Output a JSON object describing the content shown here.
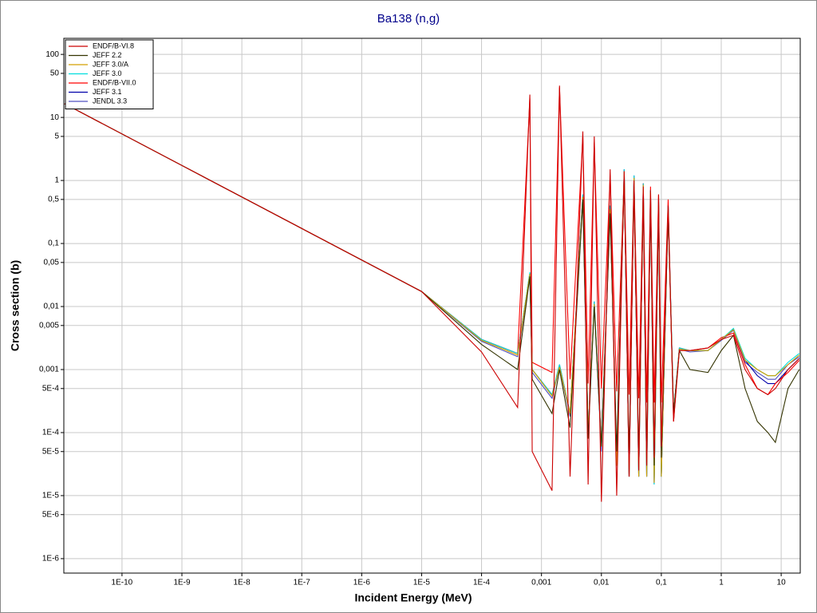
{
  "chart_data": {
    "type": "line",
    "title": "Ba138 (n,g)",
    "x_label": "Incident Energy (MeV)",
    "y_label": "Cross section (b)",
    "xscale": "log",
    "yscale": "log",
    "grid": true,
    "legend": "upper left",
    "xlim": [
      1.07e-11,
      20.8
    ],
    "ylim": [
      5.9e-07,
      180
    ],
    "xticks": [
      {
        "value": 1e-10,
        "label": "1E-10"
      },
      {
        "value": 1e-09,
        "label": "1E-9"
      },
      {
        "value": 1e-08,
        "label": "1E-8"
      },
      {
        "value": 1e-07,
        "label": "1E-7"
      },
      {
        "value": 1e-06,
        "label": "1E-6"
      },
      {
        "value": 1e-05,
        "label": "1E-5"
      },
      {
        "value": 0.0001,
        "label": "1E-4"
      },
      {
        "value": 0.001,
        "label": "0,001"
      },
      {
        "value": 0.01,
        "label": "0,01"
      },
      {
        "value": 0.1,
        "label": "0,1"
      },
      1,
      10
    ],
    "yticks": [
      {
        "value": 1e-06,
        "label": "1E-6"
      },
      {
        "value": 5e-06,
        "label": "5E-6"
      },
      {
        "value": 1e-05,
        "label": "1E-5"
      },
      {
        "value": 5e-05,
        "label": "5E-5"
      },
      {
        "value": 0.0001,
        "label": "1E-4"
      },
      {
        "value": 0.0005,
        "label": "5E-4"
      },
      {
        "value": 0.001,
        "label": "0,001"
      },
      {
        "value": 0.005,
        "label": "0,005"
      },
      {
        "value": 0.01,
        "label": "0,01"
      },
      {
        "value": 0.05,
        "label": "0,05"
      },
      {
        "value": 0.1,
        "label": "0,1"
      },
      {
        "value": 0.5,
        "label": "0,5"
      },
      1,
      5,
      10,
      50,
      100
    ],
    "x": [
      1.1e-11,
      1e-09,
      1e-07,
      1e-05,
      0.0001,
      0.0004,
      0.00064,
      0.0007,
      0.0015,
      0.002,
      0.003,
      0.0049,
      0.006,
      0.0076,
      0.01,
      0.014,
      0.018,
      0.024,
      0.029,
      0.035,
      0.042,
      0.05,
      0.057,
      0.066,
      0.076,
      0.09,
      0.1,
      0.13,
      0.16,
      0.2,
      0.3,
      0.6,
      1,
      1.6,
      2.5,
      4,
      6,
      8,
      13,
      20
    ],
    "series": [
      {
        "name": "ENDF/B-VI.8",
        "color": "#cc0000",
        "values": [
          16.5,
          1.73,
          0.173,
          0.0173,
          0.0019,
          0.00025,
          23,
          5e-05,
          1.2e-05,
          32,
          2e-05,
          6,
          1.5e-05,
          5,
          8e-06,
          1.5,
          1e-05,
          1.4,
          2e-05,
          1,
          2.5e-05,
          0.8,
          3e-05,
          0.7,
          4e-05,
          0.6,
          6e-05,
          0.4,
          0.00015,
          0.002,
          0.002,
          0.0022,
          0.003,
          0.0035,
          0.001,
          0.0005,
          0.0004,
          0.0005,
          0.001,
          0.0015
        ]
      },
      {
        "name": "JEFF 2.2",
        "color": "#333300",
        "values": [
          16.5,
          1.73,
          0.173,
          0.0173,
          0.0025,
          0.001,
          0.03,
          0.0007,
          0.0002,
          0.001,
          0.00012,
          0.5,
          8e-05,
          0.01,
          6e-05,
          0.3,
          5e-05,
          1,
          4e-05,
          0.8,
          4e-05,
          0.6,
          3e-05,
          0.5,
          3e-05,
          0.4,
          4e-05,
          0.3,
          0.0002,
          0.002,
          0.001,
          0.0009,
          0.002,
          0.0035,
          0.0005,
          0.00015,
          0.0001,
          7e-05,
          0.0005,
          0.001
        ]
      },
      {
        "name": "JEFF 3.0/A",
        "color": "#d4a000",
        "values": [
          16.5,
          1.73,
          0.173,
          0.0173,
          0.0029,
          0.0017,
          0.033,
          0.001,
          0.00038,
          0.0011,
          0.0002,
          0.55,
          0.0001,
          0.011,
          6e-05,
          0.35,
          3e-05,
          1.4,
          2e-05,
          1.1,
          2e-05,
          0.85,
          2e-05,
          0.65,
          1.6e-05,
          0.45,
          2e-05,
          0.35,
          0.0002,
          0.0021,
          0.002,
          0.002,
          0.003,
          0.0043,
          0.0014,
          0.001,
          0.0008,
          0.0008,
          0.0012,
          0.0017
        ]
      },
      {
        "name": "JEFF 3.0",
        "color": "#00dddd",
        "values": [
          16.5,
          1.73,
          0.173,
          0.0173,
          0.003,
          0.0018,
          0.035,
          0.001,
          0.0004,
          0.0012,
          0.0002,
          0.6,
          0.0001,
          0.012,
          6e-05,
          0.4,
          3e-05,
          1.5,
          2e-05,
          1.2,
          2e-05,
          0.9,
          2e-05,
          0.7,
          1.5e-05,
          0.5,
          2e-05,
          0.4,
          0.0002,
          0.0022,
          0.002,
          0.002,
          0.003,
          0.0045,
          0.0015,
          0.001,
          0.0008,
          0.0008,
          0.0013,
          0.0018
        ]
      },
      {
        "name": "ENDF/B-VII.0",
        "color": "#ff0000",
        "values": [
          16.5,
          1.73,
          0.173,
          0.0173,
          0.003,
          0.0018,
          20,
          0.0013,
          0.0009,
          30,
          0.0007,
          5,
          0.0006,
          4,
          0.0005,
          1.2,
          0.00045,
          1.3,
          0.0004,
          1.1,
          0.00035,
          0.9,
          0.0003,
          0.8,
          0.0003,
          0.6,
          0.0003,
          0.5,
          0.00015,
          0.0022,
          0.002,
          0.0022,
          0.0032,
          0.0038,
          0.0012,
          0.0005,
          0.0004,
          0.0006,
          0.0009,
          0.0014
        ]
      },
      {
        "name": "JEFF 3.1",
        "color": "#0000aa",
        "values": [
          16.5,
          1.73,
          0.173,
          0.0173,
          0.003,
          0.0018,
          0.034,
          0.001,
          0.0004,
          0.0012,
          0.0002,
          0.6,
          0.0001,
          0.012,
          6e-05,
          0.4,
          3e-05,
          1.5,
          2e-05,
          1.2,
          2e-05,
          0.9,
          2e-05,
          0.7,
          1.5e-05,
          0.5,
          2e-05,
          0.4,
          0.0002,
          0.0022,
          0.002,
          0.002,
          0.003,
          0.0044,
          0.0014,
          0.0008,
          0.0006,
          0.0006,
          0.001,
          0.0015
        ]
      },
      {
        "name": "JENDL 3.3",
        "color": "#5050c0",
        "values": [
          16.5,
          1.73,
          0.173,
          0.0173,
          0.0028,
          0.0016,
          0.03,
          0.0009,
          0.00035,
          0.0011,
          0.00018,
          0.5,
          9e-05,
          0.011,
          5e-05,
          0.35,
          3e-05,
          1.3,
          2e-05,
          1.1,
          2e-05,
          0.8,
          2e-05,
          0.6,
          1.8e-05,
          0.45,
          2e-05,
          0.35,
          0.0002,
          0.0021,
          0.0019,
          0.002,
          0.0029,
          0.0042,
          0.0013,
          0.0009,
          0.0007,
          0.0007,
          0.0012,
          0.0016
        ]
      }
    ]
  }
}
